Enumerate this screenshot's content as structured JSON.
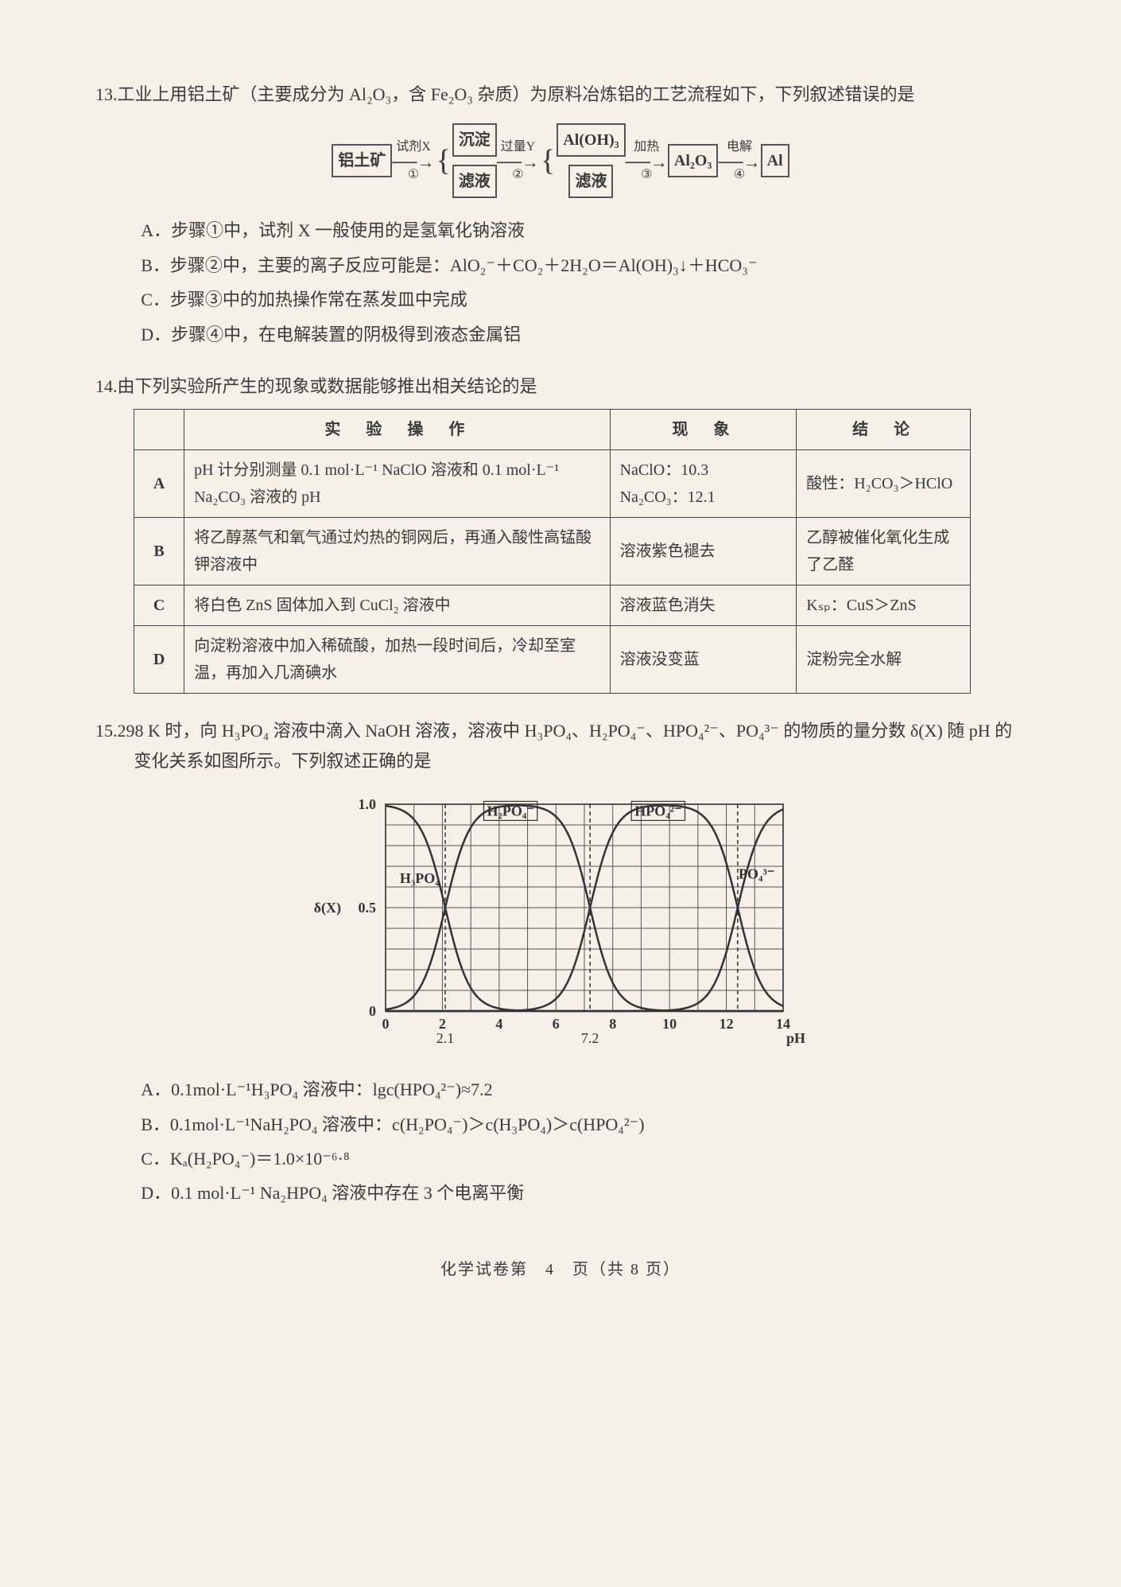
{
  "q13": {
    "number": "13.",
    "stem": "工业上用铝土矿（主要成分为 Al₂O₃，含 Fe₂O₃ 杂质）为原料冶炼铝的工艺流程如下，下列叙述错误的是",
    "flow": {
      "n1": "铝土矿",
      "a1_over": "试剂X",
      "a1_under": "①",
      "n2a": "沉淀",
      "n2b": "滤液",
      "a2_over": "过量Y",
      "a2_under": "②",
      "n3a": "Al(OH)₃",
      "n3b": "滤液",
      "a3_over": "加热",
      "a3_under": "③",
      "n4": "Al₂O₃",
      "a4_over": "电解",
      "a4_under": "④",
      "n5": "Al"
    },
    "opts": {
      "A": "A．步骤①中，试剂 X 一般使用的是氢氧化钠溶液",
      "B": "B．步骤②中，主要的离子反应可能是：AlO₂⁻＋CO₂＋2H₂O＝Al(OH)₃↓＋HCO₃⁻",
      "C": "C．步骤③中的加热操作常在蒸发皿中完成",
      "D": "D．步骤④中，在电解装置的阴极得到液态金属铝"
    }
  },
  "q14": {
    "number": "14.",
    "stem": "由下列实验所产生的现象或数据能够推出相关结论的是",
    "table": {
      "headers": {
        "h1": "",
        "h2": "实　验　操　作",
        "h3": "现　象",
        "h4": "结　论"
      },
      "rows": [
        {
          "label": "A",
          "op": "pH 计分别测量 0.1 mol·L⁻¹ NaClO 溶液和 0.1 mol·L⁻¹ Na₂CO₃ 溶液的 pH",
          "ph": "NaClO：10.3　Na₂CO₃：12.1",
          "cc": "酸性：H₂CO₃＞HClO"
        },
        {
          "label": "B",
          "op": "将乙醇蒸气和氧气通过灼热的铜网后，再通入酸性高锰酸钾溶液中",
          "ph": "溶液紫色褪去",
          "cc": "乙醇被催化氧化生成了乙醛"
        },
        {
          "label": "C",
          "op": "将白色 ZnS 固体加入到 CuCl₂ 溶液中",
          "ph": "溶液蓝色消失",
          "cc": "Kₛₚ：CuS＞ZnS"
        },
        {
          "label": "D",
          "op": "向淀粉溶液中加入稀硫酸，加热一段时间后，冷却至室温，再加入几滴碘水",
          "ph": "溶液没变蓝",
          "cc": "淀粉完全水解"
        }
      ]
    }
  },
  "q15": {
    "number": "15.",
    "stem": "298 K 时，向 H₃PO₄ 溶液中滴入 NaOH 溶液，溶液中 H₃PO₄、H₂PO₄⁻、HPO₄²⁻、PO₄³⁻ 的物质的量分数 δ(X) 随 pH 的变化关系如图所示。下列叙述正确的是",
    "opts": {
      "A": "A．0.1mol·L⁻¹H₃PO₄ 溶液中：lgc(HPO₄²⁻)≈7.2",
      "B": "B．0.1mol·L⁻¹NaH₂PO₄ 溶液中：c(H₂PO₄⁻)＞c(H₃PO₄)＞c(HPO₄²⁻)",
      "C": "C．Kₐ(H₂PO₄⁻)＝1.0×10⁻⁶·⁸",
      "D": "D．0.1 mol·L⁻¹ Na₂HPO₄ 溶液中存在 3 个电离平衡"
    },
    "chart": {
      "x_label": "pH",
      "y_label": "δ(X)",
      "y_ticks": [
        "0",
        "0.5",
        "1.0"
      ],
      "x_ticks": [
        "0",
        "2",
        "4",
        "6",
        "8",
        "10",
        "12",
        "14"
      ],
      "x_extra": [
        "2.1",
        "7.2"
      ],
      "species": [
        "H₃PO₄",
        "H₂PO₄⁻",
        "HPO₄²⁻",
        "PO₄³⁻"
      ],
      "crossings_pH": [
        2.1,
        7.2,
        12.4
      ],
      "bg": "#f5f0e8",
      "grid_color": "#555555",
      "line_color": "#333333",
      "xlim": [
        0,
        14
      ],
      "ylim": [
        0,
        1.0
      ]
    }
  },
  "footer": "化学试卷第　4　页（共 8 页）"
}
